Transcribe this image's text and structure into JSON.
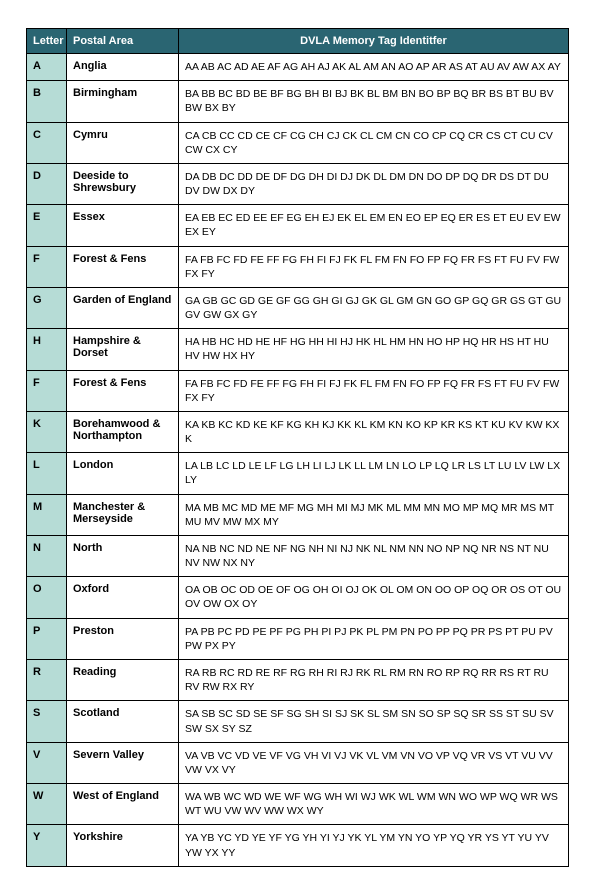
{
  "table": {
    "header": {
      "letter": "Letter",
      "area": "Postal Area",
      "tag": "DVLA Memory Tag Identitfer"
    },
    "rows": [
      {
        "letter": "A",
        "area": "Anglia",
        "tags": "AA AB AC AD AE AF AG AH AJ AK AL AM AN AO AP AR AS AT AU AV AW AX AY"
      },
      {
        "letter": "B",
        "area": "Birmingham",
        "tags": "BA BB BC BD BE BF BG BH BI BJ BK BL BM BN BO BP BQ BR BS BT BU BV BW BX BY"
      },
      {
        "letter": "C",
        "area": "Cymru",
        "tags": "CA CB CC CD CE CF CG CH CJ CK CL CM CN CO CP CQ CR CS CT CU CV CW CX CY"
      },
      {
        "letter": "D",
        "area": "Deeside to Shrewsbury",
        "tags": "DA DB DC DD DE DF DG DH DI DJ DK DL DM DN DO DP DQ DR DS DT DU DV DW DX DY"
      },
      {
        "letter": "E",
        "area": "Essex",
        "tags": "EA EB EC ED EE EF EG EH EJ EK EL EM EN EO EP EQ ER ES ET EU EV EW EX EY"
      },
      {
        "letter": "F",
        "area": "Forest & Fens",
        "tags": "FA FB FC FD FE FF FG FH FI FJ FK FL FM FN FO FP FQ FR FS FT FU FV FW FX FY"
      },
      {
        "letter": "G",
        "area": "Garden of England",
        "tags": "GA GB GC GD GE GF GG GH GI GJ GK GL GM GN GO GP GQ GR GS GT GU GV GW GX GY"
      },
      {
        "letter": "H",
        "area": "Hampshire & Dorset",
        "tags": "HA HB HC HD HE HF HG HH HI HJ HK HL HM HN HO HP HQ HR HS HT HU HV HW HX HY"
      },
      {
        "letter": "F",
        "area": "Forest & Fens",
        "tags": "FA FB FC FD FE FF FG FH FI FJ FK FL FM FN FO FP FQ FR FS FT FU FV FW FX FY"
      },
      {
        "letter": "K",
        "area": "Borehamwood & Northampton",
        "tags": "KA KB  KC  KD  KE  KF  KG  KH  KJ  KK  KL  KM  KN  KO  KP KR  KS  KT  KU  KV  KW  KX  K"
      },
      {
        "letter": "L",
        "area": "London",
        "tags": "LA LB LC LD LE LF LG LH LI LJ LK LL LM LN LO LP LQ LR LS LT LU LV LW LX LY"
      },
      {
        "letter": "M",
        "area": "Manchester & Merseyside",
        "tags": "MA MB MC MD ME MF MG MH MI MJ MK ML MM MN MO MP MQ MR MS MT MU MV MW MX MY"
      },
      {
        "letter": "N",
        "area": "North",
        "tags": "NA NB NC ND NE NF NG NH NI NJ NK NL NM NN NO NP NQ NR NS NT NU NV NW NX NY"
      },
      {
        "letter": "O",
        "area": "Oxford",
        "tags": "OA OB OC OD OE OF OG OH OI OJ OK OL OM ON OO OP OQ OR OS OT OU OV OW OX OY"
      },
      {
        "letter": "P",
        "area": "Preston",
        "tags": "PA PB PC PD PE PF PG PH PI PJ PK PL PM PN PO PP PQ PR PS PT PU PV PW PX PY"
      },
      {
        "letter": "R",
        "area": "Reading",
        "tags": "RA RB RC RD RE RF RG RH RI RJ RK RL RM RN RO RP RQ RR RS RT RU RV RW RX RY"
      },
      {
        "letter": "S",
        "area": "Scotland",
        "tags": "SA SB SC SD SE SF SG SH SI SJ SK SL SM SN SO SP SQ SR SS ST SU SV SW SX SY SZ"
      },
      {
        "letter": "V",
        "area": "Severn Valley",
        "tags": "VA VB VC VD VE VF VG VH VI VJ VK VL VM VN VO VP VQ VR VS VT VU VV VW VX VY"
      },
      {
        "letter": "W",
        "area": "West of England",
        "tags": "WA WB WC WD WE WF WG WH WI WJ WK WL WM WN WO WP WQ WR WS WT WU VW WV WW WX WY"
      },
      {
        "letter": "Y",
        "area": "Yorkshire",
        "tags": "YA YB YC YD YE YF YG YH YI YJ YK YL YM YN YO YP YQ YR YS YT YU YV YW YX YY"
      }
    ]
  },
  "colors": {
    "header_bg": "#2a6572",
    "header_fg": "#ffffff",
    "letter_bg": "#b6dcd6",
    "border": "#000000",
    "page_bg": "#ffffff"
  }
}
